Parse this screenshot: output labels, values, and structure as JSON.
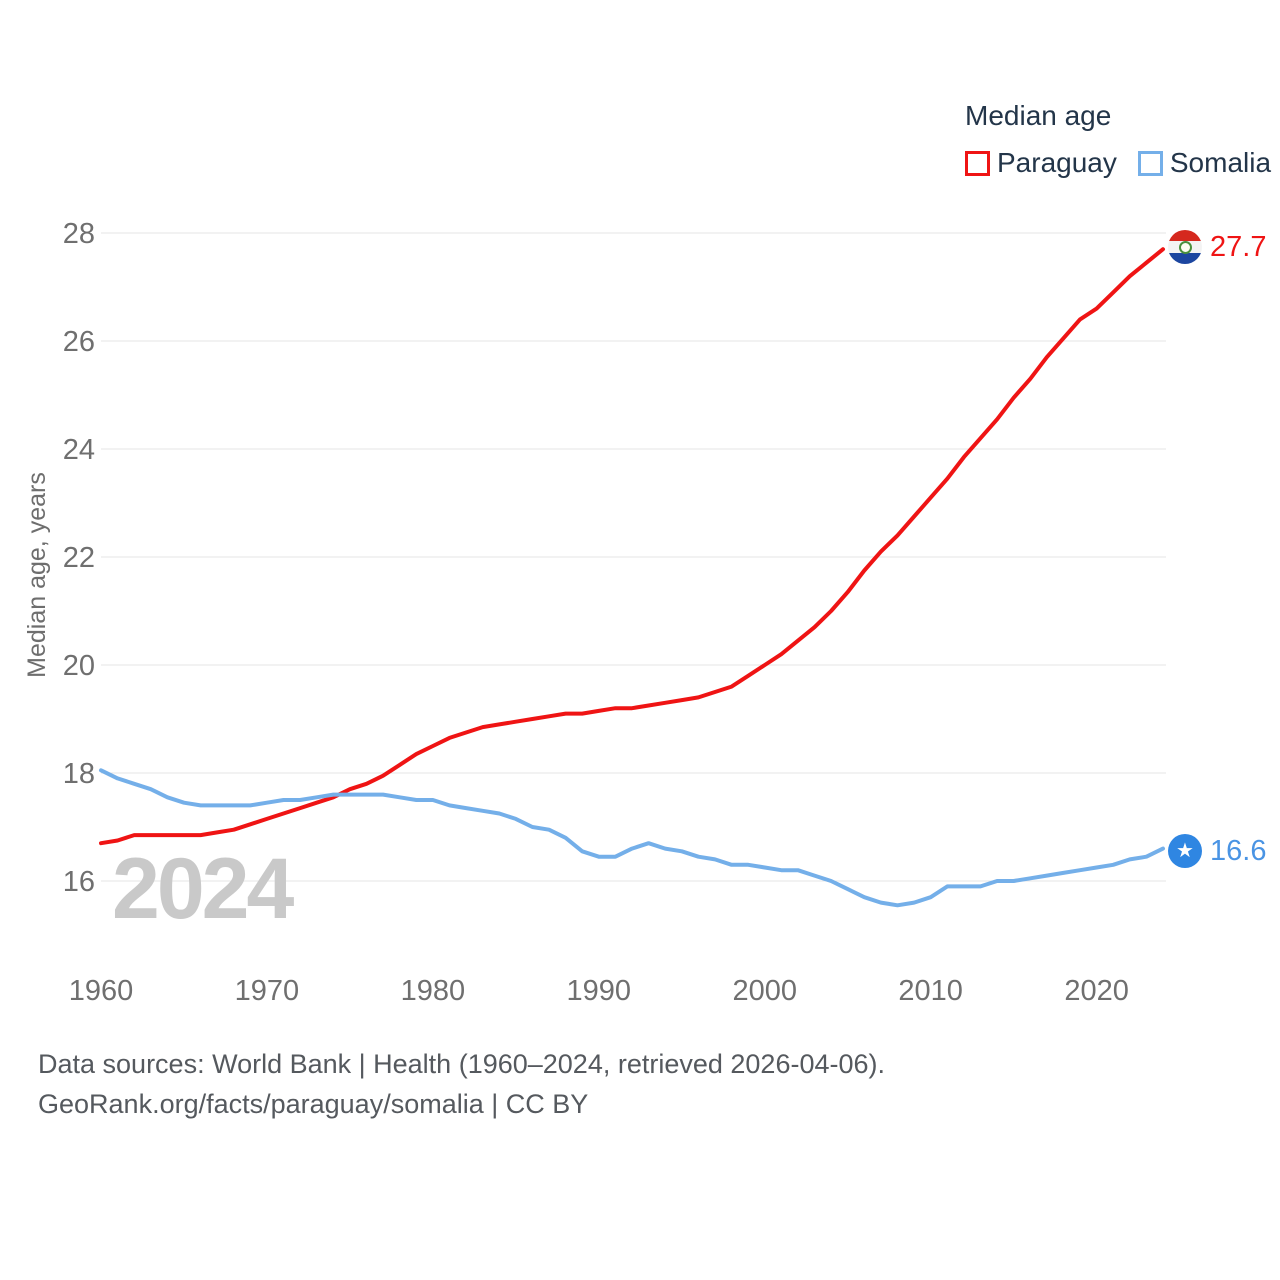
{
  "legend": {
    "title": "Median age"
  },
  "watermark": {
    "text": "2024"
  },
  "icons": {
    "paraguay_flag": "paraguay-flag-circle",
    "somalia_flag": "somalia-flag-circle",
    "somalia_star_glyph": "★"
  },
  "footer": {
    "line1": "Data sources: World Bank | Health (1960–2024, retrieved 2026-04-06).",
    "line2": "GeoRank.org/facts/paraguay/somalia | CC BY"
  },
  "chart_data": {
    "type": "line",
    "title": "Median age",
    "ylabel": "Median age, years",
    "xlim": [
      1960,
      2024
    ],
    "ylim": [
      14.8,
      28.5
    ],
    "xticks": [
      1960,
      1970,
      1980,
      1990,
      2000,
      2010,
      2020
    ],
    "yticks": [
      16,
      18,
      20,
      22,
      24,
      26,
      28
    ],
    "grid": "horizontal",
    "legend_position": "top-right",
    "x": [
      1960,
      1961,
      1962,
      1963,
      1964,
      1965,
      1966,
      1967,
      1968,
      1969,
      1970,
      1971,
      1972,
      1973,
      1974,
      1975,
      1976,
      1977,
      1978,
      1979,
      1980,
      1981,
      1982,
      1983,
      1984,
      1985,
      1986,
      1987,
      1988,
      1989,
      1990,
      1991,
      1992,
      1993,
      1994,
      1995,
      1996,
      1997,
      1998,
      1999,
      2000,
      2001,
      2002,
      2003,
      2004,
      2005,
      2006,
      2007,
      2008,
      2009,
      2010,
      2011,
      2012,
      2013,
      2014,
      2015,
      2016,
      2017,
      2018,
      2019,
      2020,
      2021,
      2022,
      2023,
      2024
    ],
    "series": [
      {
        "name": "Paraguay",
        "color": "#ef1414",
        "label_color": "#ef1414",
        "end_label": "27.7",
        "values": [
          16.7,
          16.75,
          16.85,
          16.85,
          16.85,
          16.85,
          16.85,
          16.9,
          16.95,
          17.05,
          17.15,
          17.25,
          17.35,
          17.45,
          17.55,
          17.7,
          17.8,
          17.95,
          18.15,
          18.35,
          18.5,
          18.65,
          18.75,
          18.85,
          18.9,
          18.95,
          19.0,
          19.05,
          19.1,
          19.1,
          19.15,
          19.2,
          19.2,
          19.25,
          19.3,
          19.35,
          19.4,
          19.5,
          19.6,
          19.8,
          20.0,
          20.2,
          20.45,
          20.7,
          21.0,
          21.35,
          21.75,
          22.1,
          22.4,
          22.75,
          23.1,
          23.45,
          23.85,
          24.2,
          24.55,
          24.95,
          25.3,
          25.7,
          26.05,
          26.4,
          26.6,
          26.9,
          27.2,
          27.45,
          27.7
        ]
      },
      {
        "name": "Somalia",
        "color": "#74afe9",
        "label_color": "#4a94e4",
        "end_label": "16.6",
        "values": [
          18.05,
          17.9,
          17.8,
          17.7,
          17.55,
          17.45,
          17.4,
          17.4,
          17.4,
          17.4,
          17.45,
          17.5,
          17.5,
          17.55,
          17.6,
          17.6,
          17.6,
          17.6,
          17.55,
          17.5,
          17.5,
          17.4,
          17.35,
          17.3,
          17.25,
          17.15,
          17.0,
          16.95,
          16.8,
          16.55,
          16.45,
          16.45,
          16.6,
          16.7,
          16.6,
          16.55,
          16.45,
          16.4,
          16.3,
          16.3,
          16.25,
          16.2,
          16.2,
          16.1,
          16.0,
          15.85,
          15.7,
          15.6,
          15.55,
          15.6,
          15.7,
          15.9,
          15.9,
          15.9,
          16.0,
          16.0,
          16.05,
          16.1,
          16.15,
          16.2,
          16.25,
          16.3,
          16.4,
          16.45,
          16.6
        ]
      }
    ]
  }
}
